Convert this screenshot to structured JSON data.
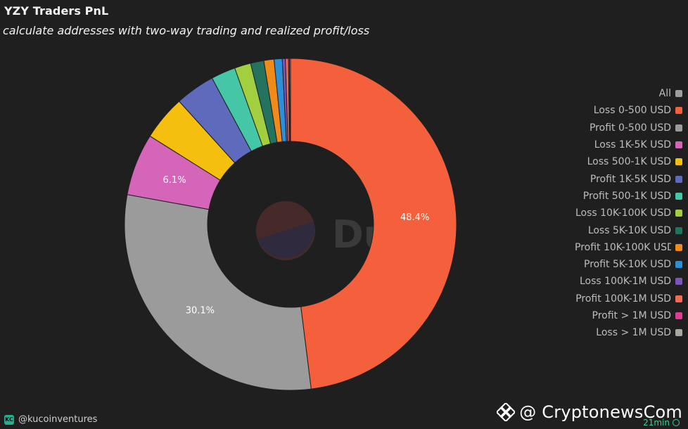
{
  "header": {
    "title": "YZY Traders PnL",
    "subtitle": "calculate addresses with two-way trading and realized profit/loss"
  },
  "chart_data": {
    "type": "pie",
    "donut": true,
    "title": "YZY Traders PnL",
    "subtitle": "calculate addresses with two-way trading and realized profit/loss",
    "legend_position": "right",
    "slices": [
      {
        "label": "All",
        "value": 0.0,
        "color": "#9e9e9e"
      },
      {
        "label": "Loss 0-500 USD",
        "value": 48.4,
        "color": "#f4603c",
        "data_label": "48.4%"
      },
      {
        "label": "Profit 0-500 USD",
        "value": 30.1,
        "color": "#9b9b9b",
        "data_label": "30.1%"
      },
      {
        "label": "Loss 1K-5K USD",
        "value": 6.1,
        "color": "#d465b9",
        "data_label": "6.1%"
      },
      {
        "label": "Loss 500-1K USD",
        "value": 4.4,
        "color": "#f4bf0f"
      },
      {
        "label": "Profit 1K-5K USD",
        "value": 3.9,
        "color": "#5e6abb"
      },
      {
        "label": "Profit 500-1K USD",
        "value": 2.4,
        "color": "#45c6a7"
      },
      {
        "label": "Loss 10K-100K USD",
        "value": 1.6,
        "color": "#a1cf3f"
      },
      {
        "label": "Loss 5K-10K USD",
        "value": 1.3,
        "color": "#24735f"
      },
      {
        "label": "Profit 10K-100K USD",
        "value": 1.0,
        "color": "#f08a18"
      },
      {
        "label": "Profit 5K-10K USD",
        "value": 0.8,
        "color": "#2d8fd6"
      },
      {
        "label": "Loss 100K-1M USD",
        "value": 0.3,
        "color": "#7b55b8"
      },
      {
        "label": "Profit 100K-1M USD",
        "value": 0.3,
        "color": "#f26a55"
      },
      {
        "label": "Profit > 1M USD",
        "value": 0.1,
        "color": "#dd3d8f"
      },
      {
        "label": "Loss > 1M USD",
        "value": 0.1,
        "color": "#a8a8a0"
      }
    ]
  },
  "legend": {
    "items": [
      {
        "label": "All",
        "color": "#9e9e9e"
      },
      {
        "label": "Loss 0-500 USD",
        "color": "#f4603c"
      },
      {
        "label": "Profit 0-500 USD",
        "color": "#9b9b9b"
      },
      {
        "label": "Loss 1K-5K USD",
        "color": "#d465b9"
      },
      {
        "label": "Loss 500-1K USD",
        "color": "#f4bf0f"
      },
      {
        "label": "Profit 1K-5K USD",
        "color": "#5e6abb"
      },
      {
        "label": "Profit 500-1K USD",
        "color": "#45c6a7"
      },
      {
        "label": "Loss 10K-100K USD",
        "color": "#a1cf3f"
      },
      {
        "label": "Loss 5K-10K USD",
        "color": "#24735f"
      },
      {
        "label": "Profit 10K-100K USD",
        "color": "#f08a18"
      },
      {
        "label": "Profit 5K-10K USD",
        "color": "#2d8fd6"
      },
      {
        "label": "Loss 100K-1M USD",
        "color": "#7b55b8"
      },
      {
        "label": "Profit 100K-1M USD",
        "color": "#f26a55"
      },
      {
        "label": "Profit > 1M USD",
        "color": "#dd3d8f"
      },
      {
        "label": "Loss > 1M USD",
        "color": "#a8a8a0"
      }
    ]
  },
  "footer": {
    "handle": "@kucoinventures",
    "logo_text": "KC",
    "watermark": "@ CryptonewsCom",
    "refresh_text": "21min",
    "dune_watermark": "Dune"
  },
  "colors": {
    "background": "#1f1f1f",
    "accent": "#3ecf8e"
  },
  "icons": {
    "kucoin_logo": "kucoin-logo-icon",
    "binance_diamond": "diamond-logo-icon",
    "refresh": "refresh-check-icon"
  }
}
